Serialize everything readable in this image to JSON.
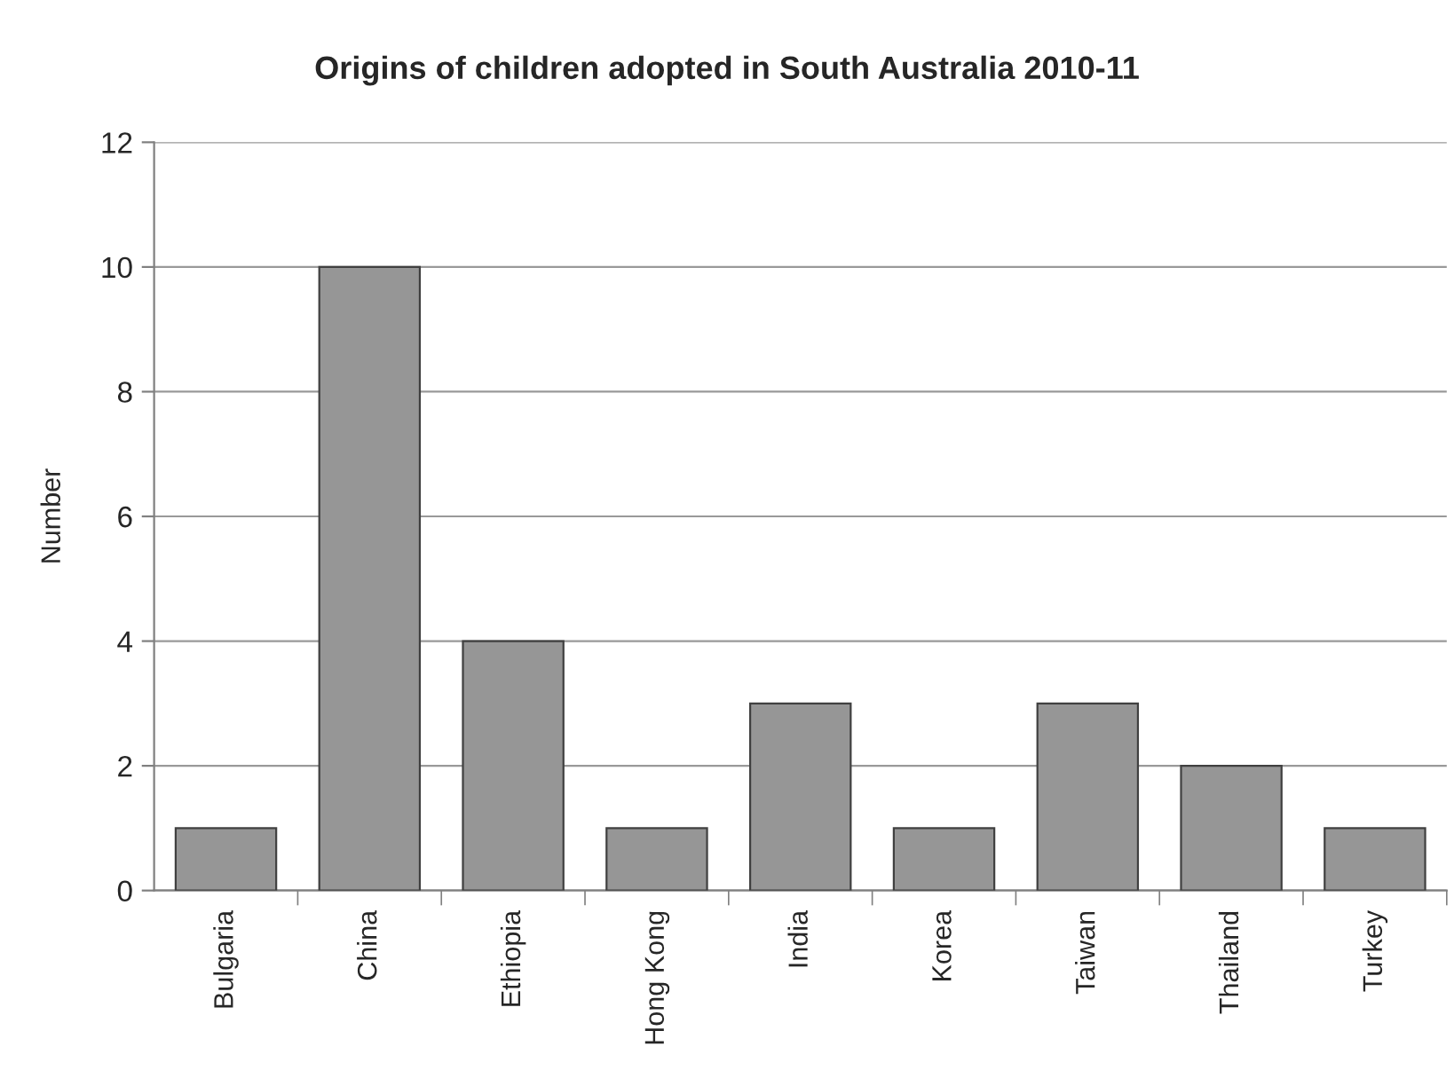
{
  "chart_data": {
    "type": "bar",
    "title": "Origins of children adopted in South Australia 2010-11",
    "ylabel": "Number",
    "categories": [
      "Bulgaria",
      "China",
      "Ethiopia",
      "Hong Kong",
      "India",
      "Korea",
      "Taiwan",
      "Thailand",
      "Turkey"
    ],
    "values": [
      1,
      10,
      4,
      1,
      3,
      1,
      3,
      2,
      1
    ],
    "color": "#969696",
    "ylim": [
      0,
      12
    ],
    "yticks": [
      0,
      2,
      4,
      6,
      8,
      10,
      12
    ],
    "grid": "y",
    "legend": false
  }
}
